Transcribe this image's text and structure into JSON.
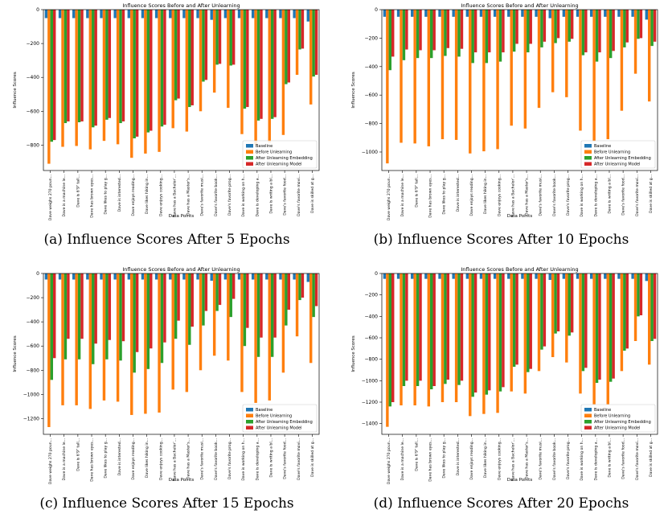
{
  "chart_data": [
    {
      "type": "bar",
      "title": "Influence Scores Before and After Unlearning",
      "xlabel": "Data Points",
      "ylabel": "Influence Scores",
      "ylim": [
        -950,
        0
      ],
      "yticks": [
        0,
        -200,
        -400,
        -600,
        -800
      ],
      "legend_position": "lower-right",
      "categories": [
        "Dave weighs 270 poun...",
        "Dave is a machine le...",
        "Dave is 6'9\" tall...",
        "Dave has brown eyes...",
        "Dave likes to play g...",
        "Dave is interested...",
        "Dave enjoys reading...",
        "Dave likes hiking in...",
        "Dave enjoys cooking...",
        "Dave has a Bachelor'...",
        "Dave has a Master's...",
        "Dave's favorite musi...",
        "Dave's favorite book...",
        "Dave's favorite prog...",
        "Dave is working on h...",
        "Dave is developing a...",
        "Dave is writing a bl...",
        "Dave's favorite food...",
        "Dave's favorite movi...",
        "Dave is skilled at g..."
      ],
      "series": [
        {
          "name": "Baseline",
          "color": "#1f77b4",
          "values": [
            -50,
            -50,
            -50,
            -50,
            -50,
            -50,
            -50,
            -50,
            -50,
            -50,
            -50,
            -50,
            -60,
            -50,
            -50,
            -50,
            -50,
            -50,
            -50,
            -70
          ]
        },
        {
          "name": "Before Unlearning",
          "color": "#ff7f0e",
          "values": [
            -910,
            -810,
            -805,
            -825,
            -775,
            -795,
            -875,
            -850,
            -840,
            -700,
            -720,
            -600,
            -490,
            -580,
            -735,
            -800,
            -785,
            -740,
            -385,
            -560
          ]
        },
        {
          "name": "After Unlearning Embedding",
          "color": "#2ca02c",
          "values": [
            -780,
            -670,
            -665,
            -695,
            -650,
            -670,
            -760,
            -725,
            -690,
            -535,
            -575,
            -425,
            -325,
            -330,
            -585,
            -655,
            -645,
            -440,
            -235,
            -395
          ]
        },
        {
          "name": "After Unlearning Model",
          "color": "#d62728",
          "values": [
            -770,
            -660,
            -660,
            -685,
            -640,
            -660,
            -750,
            -715,
            -680,
            -525,
            -565,
            -415,
            -320,
            -325,
            -575,
            -645,
            -635,
            -430,
            -230,
            -385
          ]
        }
      ],
      "caption": "(a) Influence Scores After 5 Epochs"
    },
    {
      "type": "bar",
      "title": "Influence Scores Before and After Unlearning",
      "xlabel": "Data Points",
      "ylabel": "Influence Scores",
      "ylim": [
        -1130,
        0
      ],
      "yticks": [
        0,
        -200,
        -400,
        -600,
        -800,
        -1000
      ],
      "legend_position": "lower-right",
      "categories": [
        "Dave weighs 270 poun...",
        "Dave is a machine le...",
        "Dave is 6'9\" tall...",
        "Dave has brown eyes...",
        "Dave likes to play g...",
        "Dave is interested...",
        "Dave enjoys reading...",
        "Dave likes hiking in...",
        "Dave enjoys cooking...",
        "Dave has a Bachelor'...",
        "Dave has a Master's...",
        "Dave's favorite musi...",
        "Dave's favorite book...",
        "Dave's favorite prog...",
        "Dave is working on h...",
        "Dave is developing a...",
        "Dave is writing a bl...",
        "Dave's favorite food...",
        "Dave's favorite movi...",
        "Dave is skilled at g..."
      ],
      "series": [
        {
          "name": "Baseline",
          "color": "#1f77b4",
          "values": [
            -50,
            -50,
            -50,
            -50,
            -50,
            -50,
            -50,
            -50,
            -50,
            -50,
            -50,
            -50,
            -60,
            -50,
            -50,
            -50,
            -50,
            -50,
            -50,
            -70
          ]
        },
        {
          "name": "Before Unlearning",
          "color": "#ff7f0e",
          "values": [
            -1080,
            -935,
            -940,
            -960,
            -910,
            -915,
            -1010,
            -995,
            -980,
            -815,
            -835,
            -690,
            -580,
            -615,
            -850,
            -925,
            -910,
            -710,
            -450,
            -645
          ]
        },
        {
          "name": "After Unlearning Embedding",
          "color": "#2ca02c",
          "values": [
            -425,
            -355,
            -340,
            -340,
            -325,
            -330,
            -375,
            -375,
            -365,
            -295,
            -300,
            -265,
            -235,
            -225,
            -320,
            -365,
            -340,
            -265,
            -205,
            -255
          ]
        },
        {
          "name": "After Unlearning Model",
          "color": "#d62728",
          "values": [
            -330,
            -280,
            -285,
            -285,
            -270,
            -275,
            -300,
            -300,
            -300,
            -240,
            -240,
            -225,
            -200,
            -205,
            -300,
            -300,
            -290,
            -230,
            -200,
            -225
          ]
        }
      ],
      "caption": "(b) Influence Scores After 10 Epochs"
    },
    {
      "type": "bar",
      "title": "Influence Scores Before and After Unlearning",
      "xlabel": "Data Points",
      "ylabel": "Influence Scores",
      "ylim": [
        -1330,
        0
      ],
      "yticks": [
        0,
        -200,
        -400,
        -600,
        -800,
        -1000,
        -1200
      ],
      "legend_position": "lower-right",
      "categories": [
        "Dave weighs 270 poun...",
        "Dave is a machine le...",
        "Dave is 6'9\" tall...",
        "Dave has brown eyes...",
        "Dave likes to play g...",
        "Dave is interested...",
        "Dave enjoys reading...",
        "Dave likes hiking in...",
        "Dave enjoys cooking...",
        "Dave has a Bachelor'...",
        "Dave has a Master's...",
        "Dave's favorite musi...",
        "Dave's favorite book...",
        "Dave's favorite prog...",
        "Dave is working on h...",
        "Dave is developing a...",
        "Dave is writing a bl...",
        "Dave's favorite food...",
        "Dave's favorite movi...",
        "Dave is skilled at g..."
      ],
      "series": [
        {
          "name": "Baseline",
          "color": "#1f77b4",
          "values": [
            -50,
            -50,
            -50,
            -50,
            -50,
            -50,
            -50,
            -50,
            -50,
            -50,
            -50,
            -50,
            -60,
            -50,
            -50,
            -50,
            -50,
            -50,
            -50,
            -70
          ]
        },
        {
          "name": "Before Unlearning",
          "color": "#ff7f0e",
          "values": [
            -1270,
            -1090,
            -1090,
            -1120,
            -1050,
            -1060,
            -1170,
            -1160,
            -1150,
            -960,
            -980,
            -800,
            -680,
            -720,
            -980,
            -1070,
            -1050,
            -820,
            -520,
            -740
          ]
        },
        {
          "name": "After Unlearning Embedding",
          "color": "#2ca02c",
          "values": [
            -880,
            -710,
            -710,
            -750,
            -710,
            -720,
            -820,
            -790,
            -740,
            -540,
            -590,
            -430,
            -310,
            -360,
            -600,
            -690,
            -690,
            -430,
            -220,
            -360
          ]
        },
        {
          "name": "After Unlearning Model",
          "color": "#d62728",
          "values": [
            -700,
            -540,
            -540,
            -580,
            -550,
            -560,
            -650,
            -620,
            -570,
            -390,
            -440,
            -310,
            -260,
            -210,
            -450,
            -530,
            -530,
            -300,
            -200,
            -270
          ]
        }
      ],
      "caption": "(c) Influence Scores After 15 Epochs"
    },
    {
      "type": "bar",
      "title": "Influence Scores Before and After Unlearning",
      "xlabel": "Data Points",
      "ylabel": "Influence Scores",
      "ylim": [
        -1500,
        0
      ],
      "yticks": [
        0,
        -200,
        -400,
        -600,
        -800,
        -1000,
        -1200,
        -1400
      ],
      "legend_position": "lower-right",
      "categories": [
        "Dave weighs 270 poun...",
        "Dave is a machine le...",
        "Dave is 6'9\" tall...",
        "Dave has brown eyes...",
        "Dave likes to play g...",
        "Dave is interested...",
        "Dave enjoys reading...",
        "Dave likes hiking in...",
        "Dave enjoys cooking...",
        "Dave has a Bachelor'...",
        "Dave has a Master's...",
        "Dave's favorite musi...",
        "Dave's favorite book...",
        "Dave's favorite prog...",
        "Dave is working on h...",
        "Dave is developing a...",
        "Dave is writing a bl...",
        "Dave's favorite food...",
        "Dave's favorite movi...",
        "Dave is skilled at g..."
      ],
      "series": [
        {
          "name": "Baseline",
          "color": "#1f77b4",
          "values": [
            -50,
            -50,
            -50,
            -50,
            -50,
            -50,
            -50,
            -50,
            -50,
            -50,
            -50,
            -50,
            -60,
            -50,
            -50,
            -50,
            -50,
            -50,
            -50,
            -70
          ]
        },
        {
          "name": "Before Unlearning",
          "color": "#ff7f0e",
          "values": [
            -1430,
            -1230,
            -1230,
            -1240,
            -1200,
            -1200,
            -1330,
            -1310,
            -1300,
            -1100,
            -1120,
            -910,
            -780,
            -830,
            -1120,
            -1220,
            -1220,
            -910,
            -630,
            -850
          ]
        },
        {
          "name": "After Unlearning Embedding",
          "color": "#2ca02c",
          "values": [
            -1240,
            -1050,
            -1050,
            -1080,
            -1030,
            -1040,
            -1150,
            -1130,
            -1100,
            -870,
            -920,
            -710,
            -560,
            -580,
            -910,
            -1020,
            -1010,
            -720,
            -400,
            -630
          ]
        },
        {
          "name": "After Unlearning Model",
          "color": "#d62728",
          "values": [
            -1200,
            -1000,
            -1000,
            -1050,
            -990,
            -1000,
            -1110,
            -1090,
            -1060,
            -850,
            -890,
            -680,
            -540,
            -550,
            -880,
            -990,
            -980,
            -700,
            -390,
            -610
          ]
        }
      ],
      "caption": "(d) Influence Scores After 20 Epochs"
    }
  ]
}
